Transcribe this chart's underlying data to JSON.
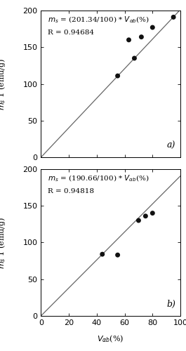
{
  "panel_a": {
    "slope": 201.34,
    "R": 0.94684,
    "points_x": [
      55,
      63,
      67,
      72,
      80,
      95
    ],
    "points_y": [
      111,
      160,
      135,
      164,
      177,
      191
    ],
    "xlim": [
      0,
      100
    ],
    "ylim": [
      0,
      200
    ],
    "panel_label": "a)"
  },
  "panel_b": {
    "slope": 190.66,
    "R": 0.94818,
    "points_x": [
      44,
      55,
      70,
      75,
      80
    ],
    "points_y": [
      84,
      83,
      130,
      136,
      140
    ],
    "xlim": [
      0,
      100
    ],
    "ylim": [
      0,
      200
    ],
    "panel_label": "b)"
  },
  "line_color": "#666666",
  "point_color": "#111111",
  "point_size": 5,
  "background_color": "#ffffff",
  "tick_label_size": 8,
  "annotation_size": 7.5,
  "label_size": 8,
  "panel_label_size": 9
}
